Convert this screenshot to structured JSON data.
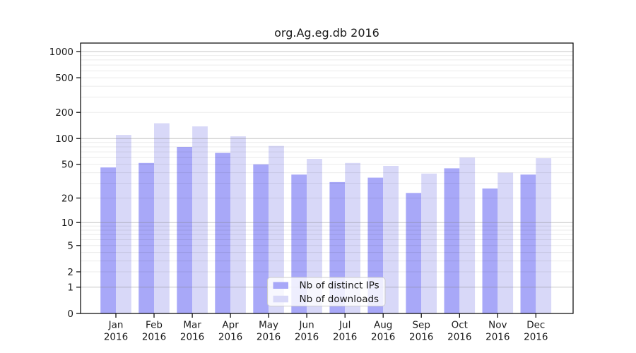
{
  "chart_data": {
    "type": "bar",
    "title": "org.Ag.eg.db 2016",
    "categories": [
      "Jan 2016",
      "Feb 2016",
      "Mar 2016",
      "Apr 2016",
      "May 2016",
      "Jun 2016",
      "Jul 2016",
      "Aug 2016",
      "Sep 2016",
      "Oct 2016",
      "Nov 2016",
      "Dec 2016"
    ],
    "series": [
      {
        "name": "Nb of distinct IPs",
        "color": "#a8a8f8",
        "values": [
          46,
          52,
          80,
          68,
          50,
          38,
          31,
          35,
          23,
          45,
          26,
          38
        ]
      },
      {
        "name": "Nb of downloads",
        "color": "#d8d8f8",
        "values": [
          110,
          150,
          138,
          106,
          82,
          58,
          52,
          48,
          39,
          60,
          40,
          59
        ]
      }
    ],
    "yscale": "log1p",
    "yticks": [
      1000,
      500,
      200,
      100,
      50,
      20,
      10,
      5,
      2,
      1,
      0
    ],
    "ylim": [
      0,
      1250
    ],
    "xlabel": "",
    "ylabel": "",
    "grid": true,
    "grid_minor_subs": [
      2,
      3,
      4,
      5,
      6,
      7,
      8,
      9
    ],
    "grid_major_at": [
      1,
      10,
      100,
      1000
    ],
    "legend_position": "inside-bottom-center",
    "colors": {
      "axis": "#000000",
      "text": "#1a1a1a",
      "grid_major": "rgba(128,128,128,0.45)",
      "grid_minor": "rgba(0,0,0,0.08)",
      "legend_bg": "rgba(255,255,255,0.8)",
      "legend_border": "#cccccc",
      "background": "#ffffff"
    }
  }
}
